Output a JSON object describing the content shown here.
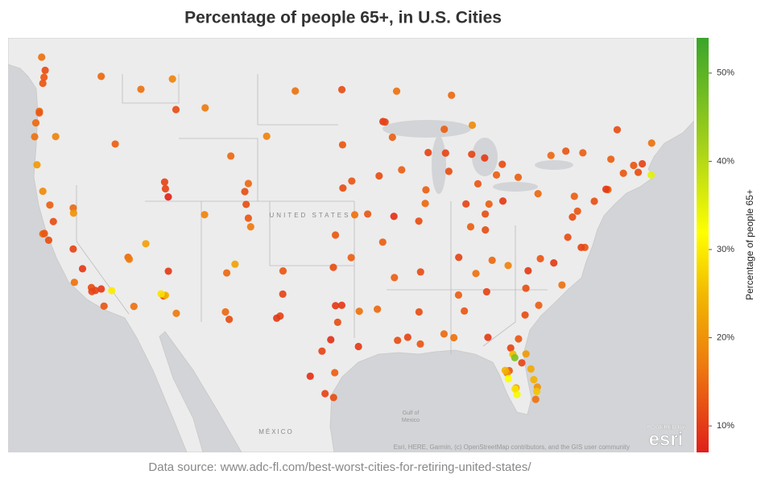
{
  "header": {
    "title": "Percentage of people 65+, in U.S. Cities"
  },
  "map_data": {
    "type": "map",
    "labels": {
      "country": "UNITED STATES",
      "mexico": "MÉXICO",
      "gulf_1": "Gulf of",
      "gulf_2": "Mexico"
    },
    "attribution": "Esri, HERE, Garmin, (c) OpenStreetMap contributors, and the GIS user community",
    "logo": {
      "top": "POWERED BY",
      "brand": "esri"
    },
    "colorbar": {
      "label": "Percentage of people 65+",
      "lim": [
        7,
        54
      ],
      "ticks": [
        {
          "value": 10,
          "label": "10%"
        },
        {
          "value": 20,
          "label": "20%"
        },
        {
          "value": 30,
          "label": "30%"
        },
        {
          "value": 40,
          "label": "40%"
        },
        {
          "value": 50,
          "label": "50%"
        }
      ]
    },
    "points": [
      {
        "lon": -122.3,
        "lat": 47.6,
        "value": 13
      },
      {
        "lon": -122.4,
        "lat": 47.25,
        "value": 13
      },
      {
        "lon": -122.5,
        "lat": 48.75,
        "value": 16
      },
      {
        "lon": -122.2,
        "lat": 48.0,
        "value": 12
      },
      {
        "lon": -117.4,
        "lat": 47.65,
        "value": 15
      },
      {
        "lon": -122.7,
        "lat": 45.6,
        "value": 15
      },
      {
        "lon": -122.7,
        "lat": 45.5,
        "value": 13
      },
      {
        "lon": -123.0,
        "lat": 44.9,
        "value": 15
      },
      {
        "lon": -123.1,
        "lat": 44.05,
        "value": 16
      },
      {
        "lon": -122.9,
        "lat": 42.3,
        "value": 21
      },
      {
        "lon": -121.3,
        "lat": 44.06,
        "value": 18
      },
      {
        "lon": -116.2,
        "lat": 43.6,
        "value": 14
      },
      {
        "lon": -114.0,
        "lat": 46.9,
        "value": 16
      },
      {
        "lon": -108.5,
        "lat": 45.8,
        "value": 17
      },
      {
        "lon": -111.3,
        "lat": 47.5,
        "value": 18
      },
      {
        "lon": -111.0,
        "lat": 45.7,
        "value": 12
      },
      {
        "lon": -106.3,
        "lat": 42.85,
        "value": 15
      },
      {
        "lon": -104.8,
        "lat": 41.1,
        "value": 15
      },
      {
        "lon": -111.9,
        "lat": 40.76,
        "value": 11
      },
      {
        "lon": -111.66,
        "lat": 40.23,
        "value": 7.5
      },
      {
        "lon": -111.97,
        "lat": 41.2,
        "value": 11
      },
      {
        "lon": -113.58,
        "lat": 37.1,
        "value": 22
      },
      {
        "lon": -115.1,
        "lat": 36.17,
        "value": 15
      },
      {
        "lon": -115.0,
        "lat": 36.04,
        "value": 17
      },
      {
        "lon": -119.8,
        "lat": 39.5,
        "value": 15
      },
      {
        "lon": -119.77,
        "lat": 39.16,
        "value": 20
      },
      {
        "lon": -122.4,
        "lat": 40.6,
        "value": 19
      },
      {
        "lon": -121.8,
        "lat": 39.7,
        "value": 14
      },
      {
        "lon": -121.5,
        "lat": 38.6,
        "value": 12
      },
      {
        "lon": -122.4,
        "lat": 37.77,
        "value": 15
      },
      {
        "lon": -122.27,
        "lat": 37.8,
        "value": 13
      },
      {
        "lon": -121.9,
        "lat": 37.34,
        "value": 12
      },
      {
        "lon": -119.8,
        "lat": 36.74,
        "value": 11
      },
      {
        "lon": -119.0,
        "lat": 35.37,
        "value": 10
      },
      {
        "lon": -118.24,
        "lat": 34.05,
        "value": 12
      },
      {
        "lon": -118.2,
        "lat": 33.77,
        "value": 11
      },
      {
        "lon": -117.9,
        "lat": 33.84,
        "value": 11
      },
      {
        "lon": -117.4,
        "lat": 33.95,
        "value": 10
      },
      {
        "lon": -117.16,
        "lat": 32.72,
        "value": 13
      },
      {
        "lon": -119.7,
        "lat": 34.42,
        "value": 16
      },
      {
        "lon": -116.5,
        "lat": 33.83,
        "value": 30
      },
      {
        "lon": -114.6,
        "lat": 32.7,
        "value": 16
      },
      {
        "lon": -112.07,
        "lat": 33.45,
        "value": 12
      },
      {
        "lon": -111.9,
        "lat": 33.5,
        "value": 24
      },
      {
        "lon": -112.27,
        "lat": 33.6,
        "value": 29
      },
      {
        "lon": -110.97,
        "lat": 32.2,
        "value": 17
      },
      {
        "lon": -111.65,
        "lat": 35.2,
        "value": 10
      },
      {
        "lon": -106.65,
        "lat": 35.08,
        "value": 15
      },
      {
        "lon": -105.94,
        "lat": 35.69,
        "value": 22
      },
      {
        "lon": -106.76,
        "lat": 32.3,
        "value": 15
      },
      {
        "lon": -106.44,
        "lat": 31.76,
        "value": 12
      },
      {
        "lon": -104.99,
        "lat": 39.74,
        "value": 12
      },
      {
        "lon": -104.8,
        "lat": 38.83,
        "value": 13
      },
      {
        "lon": -104.6,
        "lat": 38.25,
        "value": 17
      },
      {
        "lon": -105.1,
        "lat": 40.58,
        "value": 12
      },
      {
        "lon": -108.55,
        "lat": 39.06,
        "value": 18
      },
      {
        "lon": -96.73,
        "lat": 43.55,
        "value": 13
      },
      {
        "lon": -96.79,
        "lat": 46.88,
        "value": 12
      },
      {
        "lon": -100.78,
        "lat": 46.8,
        "value": 16
      },
      {
        "lon": -103.23,
        "lat": 44.08,
        "value": 18
      },
      {
        "lon": -95.94,
        "lat": 41.26,
        "value": 13
      },
      {
        "lon": -96.7,
        "lat": 40.81,
        "value": 12
      },
      {
        "lon": -97.34,
        "lat": 37.69,
        "value": 13
      },
      {
        "lon": -95.69,
        "lat": 39.05,
        "value": 16
      },
      {
        "lon": -94.58,
        "lat": 39.1,
        "value": 13
      },
      {
        "lon": -95.99,
        "lat": 36.15,
        "value": 14
      },
      {
        "lon": -97.52,
        "lat": 35.47,
        "value": 12
      },
      {
        "lon": -101.83,
        "lat": 35.22,
        "value": 13
      },
      {
        "lon": -101.85,
        "lat": 33.58,
        "value": 11
      },
      {
        "lon": -102.08,
        "lat": 32.0,
        "value": 11
      },
      {
        "lon": -102.37,
        "lat": 31.85,
        "value": 10
      },
      {
        "lon": -98.49,
        "lat": 29.42,
        "value": 11
      },
      {
        "lon": -97.74,
        "lat": 30.27,
        "value": 9
      },
      {
        "lon": -96.8,
        "lat": 32.78,
        "value": 10
      },
      {
        "lon": -97.33,
        "lat": 32.75,
        "value": 10
      },
      {
        "lon": -95.37,
        "lat": 29.76,
        "value": 10
      },
      {
        "lon": -97.4,
        "lat": 27.8,
        "value": 14
      },
      {
        "lon": -99.5,
        "lat": 27.53,
        "value": 9
      },
      {
        "lon": -97.5,
        "lat": 25.9,
        "value": 12
      },
      {
        "lon": -98.23,
        "lat": 26.2,
        "value": 11
      },
      {
        "lon": -97.15,
        "lat": 31.55,
        "value": 12
      },
      {
        "lon": -95.3,
        "lat": 32.35,
        "value": 16
      },
      {
        "lon": -93.75,
        "lat": 32.5,
        "value": 15
      },
      {
        "lon": -92.29,
        "lat": 34.75,
        "value": 14
      },
      {
        "lon": -90.05,
        "lat": 35.15,
        "value": 12
      },
      {
        "lon": -86.78,
        "lat": 36.16,
        "value": 11
      },
      {
        "lon": -83.92,
        "lat": 35.96,
        "value": 15
      },
      {
        "lon": -85.31,
        "lat": 35.04,
        "value": 16
      },
      {
        "lon": -84.39,
        "lat": 33.75,
        "value": 11
      },
      {
        "lon": -86.8,
        "lat": 33.52,
        "value": 14
      },
      {
        "lon": -86.3,
        "lat": 32.37,
        "value": 13
      },
      {
        "lon": -90.18,
        "lat": 32.3,
        "value": 12
      },
      {
        "lon": -90.07,
        "lat": 29.95,
        "value": 13
      },
      {
        "lon": -91.15,
        "lat": 30.45,
        "value": 11
      },
      {
        "lon": -92.02,
        "lat": 30.22,
        "value": 12
      },
      {
        "lon": -88.04,
        "lat": 30.69,
        "value": 15
      },
      {
        "lon": -87.2,
        "lat": 30.42,
        "value": 16
      },
      {
        "lon": -84.28,
        "lat": 30.44,
        "value": 10
      },
      {
        "lon": -81.66,
        "lat": 30.33,
        "value": 13
      },
      {
        "lon": -82.33,
        "lat": 29.65,
        "value": 11
      },
      {
        "lon": -82.14,
        "lat": 29.19,
        "value": 25
      },
      {
        "lon": -81.98,
        "lat": 28.93,
        "value": 46
      },
      {
        "lon": -81.38,
        "lat": 28.54,
        "value": 11
      },
      {
        "lon": -82.46,
        "lat": 27.95,
        "value": 13
      },
      {
        "lon": -82.64,
        "lat": 27.77,
        "value": 20
      },
      {
        "lon": -82.8,
        "lat": 27.97,
        "value": 24
      },
      {
        "lon": -82.53,
        "lat": 27.34,
        "value": 32
      },
      {
        "lon": -81.87,
        "lat": 26.64,
        "value": 22
      },
      {
        "lon": -81.79,
        "lat": 26.14,
        "value": 33
      },
      {
        "lon": -81.95,
        "lat": 26.56,
        "value": 29
      },
      {
        "lon": -80.05,
        "lat": 26.7,
        "value": 20
      },
      {
        "lon": -80.1,
        "lat": 26.37,
        "value": 26
      },
      {
        "lon": -80.35,
        "lat": 27.27,
        "value": 24
      },
      {
        "lon": -81.02,
        "lat": 29.21,
        "value": 21
      },
      {
        "lon": -80.6,
        "lat": 28.08,
        "value": 23
      },
      {
        "lon": -80.19,
        "lat": 25.76,
        "value": 16
      },
      {
        "lon": -81.1,
        "lat": 32.08,
        "value": 12
      },
      {
        "lon": -79.93,
        "lat": 32.78,
        "value": 14
      },
      {
        "lon": -81.03,
        "lat": 34.0,
        "value": 12
      },
      {
        "lon": -80.84,
        "lat": 35.23,
        "value": 10
      },
      {
        "lon": -78.64,
        "lat": 35.78,
        "value": 10
      },
      {
        "lon": -77.94,
        "lat": 34.23,
        "value": 16
      },
      {
        "lon": -82.55,
        "lat": 35.6,
        "value": 18
      },
      {
        "lon": -79.79,
        "lat": 36.07,
        "value": 13
      },
      {
        "lon": -77.44,
        "lat": 37.54,
        "value": 12
      },
      {
        "lon": -75.98,
        "lat": 36.85,
        "value": 13
      },
      {
        "lon": -76.29,
        "lat": 36.85,
        "value": 11
      },
      {
        "lon": -77.04,
        "lat": 38.9,
        "value": 12
      },
      {
        "lon": -76.61,
        "lat": 39.29,
        "value": 13
      },
      {
        "lon": -75.17,
        "lat": 39.95,
        "value": 12
      },
      {
        "lon": -79.99,
        "lat": 40.44,
        "value": 15
      },
      {
        "lon": -76.88,
        "lat": 40.27,
        "value": 14
      },
      {
        "lon": -74.0,
        "lat": 40.71,
        "value": 14
      },
      {
        "lon": -74.17,
        "lat": 40.73,
        "value": 10
      },
      {
        "lon": -72.68,
        "lat": 41.76,
        "value": 13
      },
      {
        "lon": -71.41,
        "lat": 41.82,
        "value": 12
      },
      {
        "lon": -71.06,
        "lat": 42.36,
        "value": 11
      },
      {
        "lon": -70.3,
        "lat": 41.65,
        "value": 35
      },
      {
        "lon": -71.8,
        "lat": 42.26,
        "value": 13
      },
      {
        "lon": -70.26,
        "lat": 43.66,
        "value": 16
      },
      {
        "lon": -73.21,
        "lat": 44.48,
        "value": 12
      },
      {
        "lon": -73.75,
        "lat": 42.65,
        "value": 14
      },
      {
        "lon": -76.15,
        "lat": 43.05,
        "value": 14
      },
      {
        "lon": -77.61,
        "lat": 43.16,
        "value": 13
      },
      {
        "lon": -78.88,
        "lat": 42.89,
        "value": 15
      },
      {
        "lon": -81.69,
        "lat": 41.5,
        "value": 14
      },
      {
        "lon": -83.0,
        "lat": 39.96,
        "value": 10
      },
      {
        "lon": -84.51,
        "lat": 39.1,
        "value": 12
      },
      {
        "lon": -84.19,
        "lat": 39.76,
        "value": 14
      },
      {
        "lon": -83.55,
        "lat": 41.65,
        "value": 14
      },
      {
        "lon": -83.05,
        "lat": 42.33,
        "value": 12
      },
      {
        "lon": -85.67,
        "lat": 42.96,
        "value": 11
      },
      {
        "lon": -84.56,
        "lat": 42.73,
        "value": 10
      },
      {
        "lon": -85.62,
        "lat": 44.76,
        "value": 19
      },
      {
        "lon": -86.16,
        "lat": 39.77,
        "value": 11
      },
      {
        "lon": -85.14,
        "lat": 41.08,
        "value": 13
      },
      {
        "lon": -85.76,
        "lat": 38.25,
        "value": 14
      },
      {
        "lon": -84.5,
        "lat": 38.04,
        "value": 12
      },
      {
        "lon": -87.63,
        "lat": 41.88,
        "value": 12
      },
      {
        "lon": -89.65,
        "lat": 39.8,
        "value": 15
      },
      {
        "lon": -89.59,
        "lat": 40.69,
        "value": 14
      },
      {
        "lon": -90.2,
        "lat": 38.63,
        "value": 12
      },
      {
        "lon": -93.29,
        "lat": 37.21,
        "value": 14
      },
      {
        "lon": -92.33,
        "lat": 38.95,
        "value": 9
      },
      {
        "lon": -93.6,
        "lat": 41.59,
        "value": 12
      },
      {
        "lon": -91.67,
        "lat": 41.98,
        "value": 14
      },
      {
        "lon": -87.91,
        "lat": 43.04,
        "value": 11
      },
      {
        "lon": -89.4,
        "lat": 43.07,
        "value": 11
      },
      {
        "lon": -88.02,
        "lat": 44.51,
        "value": 14
      },
      {
        "lon": -93.27,
        "lat": 44.98,
        "value": 10
      },
      {
        "lon": -93.09,
        "lat": 44.95,
        "value": 11
      },
      {
        "lon": -92.1,
        "lat": 46.79,
        "value": 16
      },
      {
        "lon": -92.46,
        "lat": 44.02,
        "value": 14
      },
      {
        "lon": -87.4,
        "lat": 46.55,
        "value": 15
      }
    ]
  },
  "footer": {
    "source": "Data source: www.adc-fl.com/best-worst-cities-for-retiring-united-states/"
  }
}
